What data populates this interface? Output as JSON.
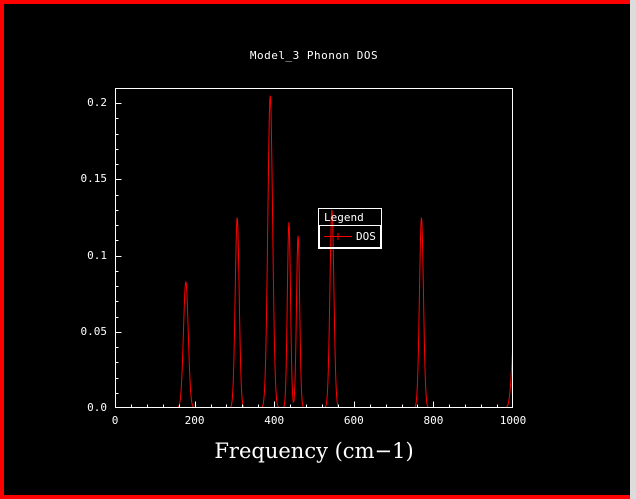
{
  "window": {
    "background": "#000000",
    "frame_color": "#ff0000",
    "right_strip_color": "#dcdcdc",
    "axis_color": "#ffffff",
    "text_color": "#ffffff"
  },
  "chart": {
    "legend": {
      "title": "Legend",
      "entries": [
        {
          "label": "DOS",
          "color": "#ff0000",
          "marker": "+"
        }
      ]
    }
  },
  "chart_data": {
    "type": "line",
    "title": "Model_3 Phonon DOS",
    "xlabel": "Frequency (cm−1)",
    "ylabel": "",
    "xlim": [
      0,
      1000
    ],
    "ylim": [
      0,
      0.21
    ],
    "xticks": [
      0,
      200,
      400,
      600,
      800,
      1000
    ],
    "xticklabels": [
      "0",
      "200",
      "400",
      "600",
      "800",
      "1000"
    ],
    "yticks": [
      0,
      0.05,
      0.1,
      0.15,
      0.2
    ],
    "yticklabels": [
      "0.0",
      "0.05",
      "0.1",
      "0.15",
      "0.2"
    ],
    "grid": false,
    "legend_position": "inside-center",
    "axis_color": "#ffffff",
    "series": [
      {
        "name": "DOS",
        "color": "#ff0000",
        "curve_model": "sum-of-gaussian-peaks",
        "peaks": [
          {
            "center": 178,
            "height": 0.083,
            "sigma": 6
          },
          {
            "center": 307,
            "height": 0.125,
            "sigma": 5
          },
          {
            "center": 390,
            "height": 0.205,
            "sigma": 6
          },
          {
            "center": 437,
            "height": 0.122,
            "sigma": 4
          },
          {
            "center": 460,
            "height": 0.113,
            "sigma": 4
          },
          {
            "center": 545,
            "height": 0.13,
            "sigma": 5
          },
          {
            "center": 770,
            "height": 0.125,
            "sigma": 5
          },
          {
            "center": 1005,
            "height": 0.055,
            "sigma": 7
          }
        ]
      }
    ]
  }
}
